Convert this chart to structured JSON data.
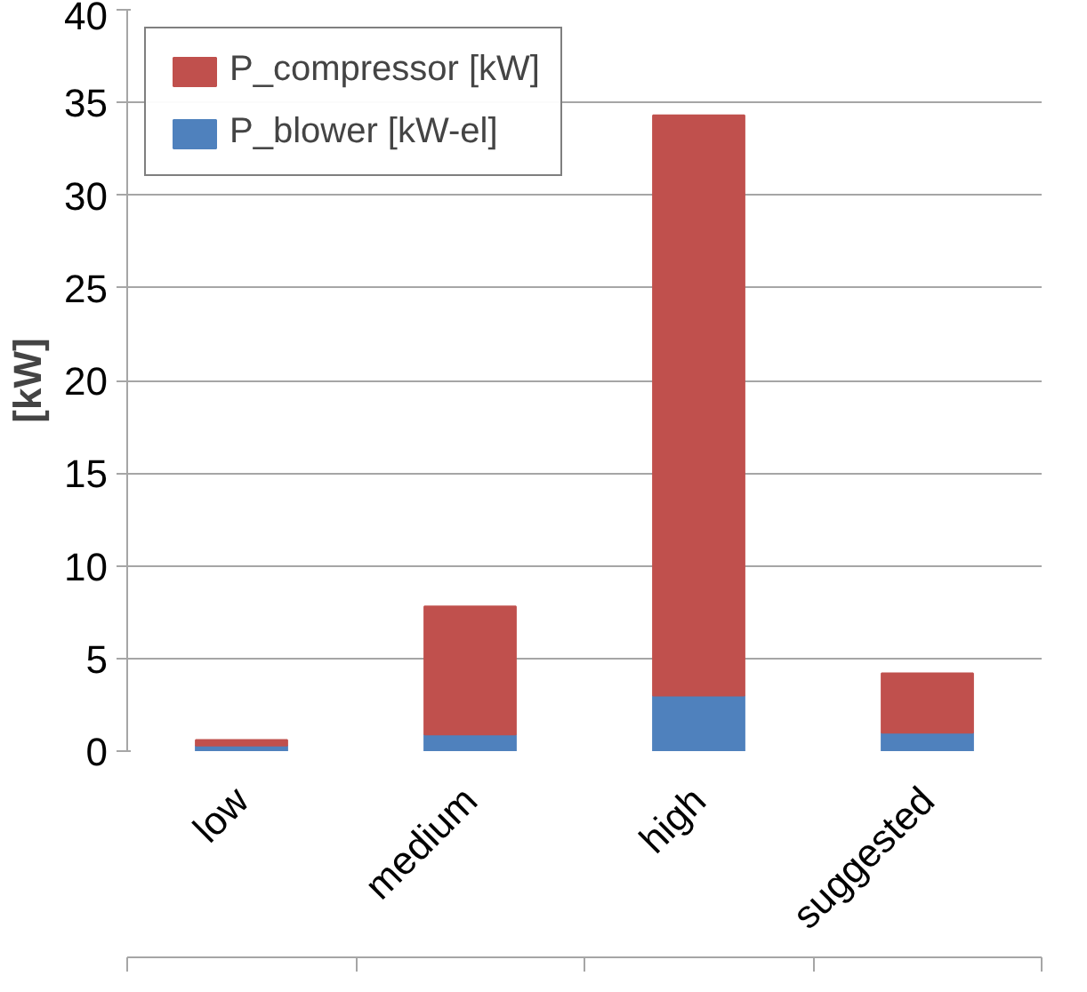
{
  "chart_data": {
    "type": "bar",
    "stacked": true,
    "ylabel": "[kW]",
    "categories": [
      "low",
      "medium",
      "high",
      "suggested"
    ],
    "series": [
      {
        "name": "P_blower [kW-el]",
        "color": "#4f81bd",
        "values": [
          0.3,
          0.9,
          3.0,
          1.0
        ]
      },
      {
        "name": "P_compressor [kW]",
        "color": "#c0504d",
        "values": [
          0.3,
          6.9,
          31.3,
          3.2
        ]
      }
    ],
    "ylim": [
      0,
      40
    ],
    "yticks": [
      0,
      5,
      10,
      15,
      20,
      25,
      30,
      35,
      40
    ],
    "grid": "y",
    "legend": "top left"
  }
}
